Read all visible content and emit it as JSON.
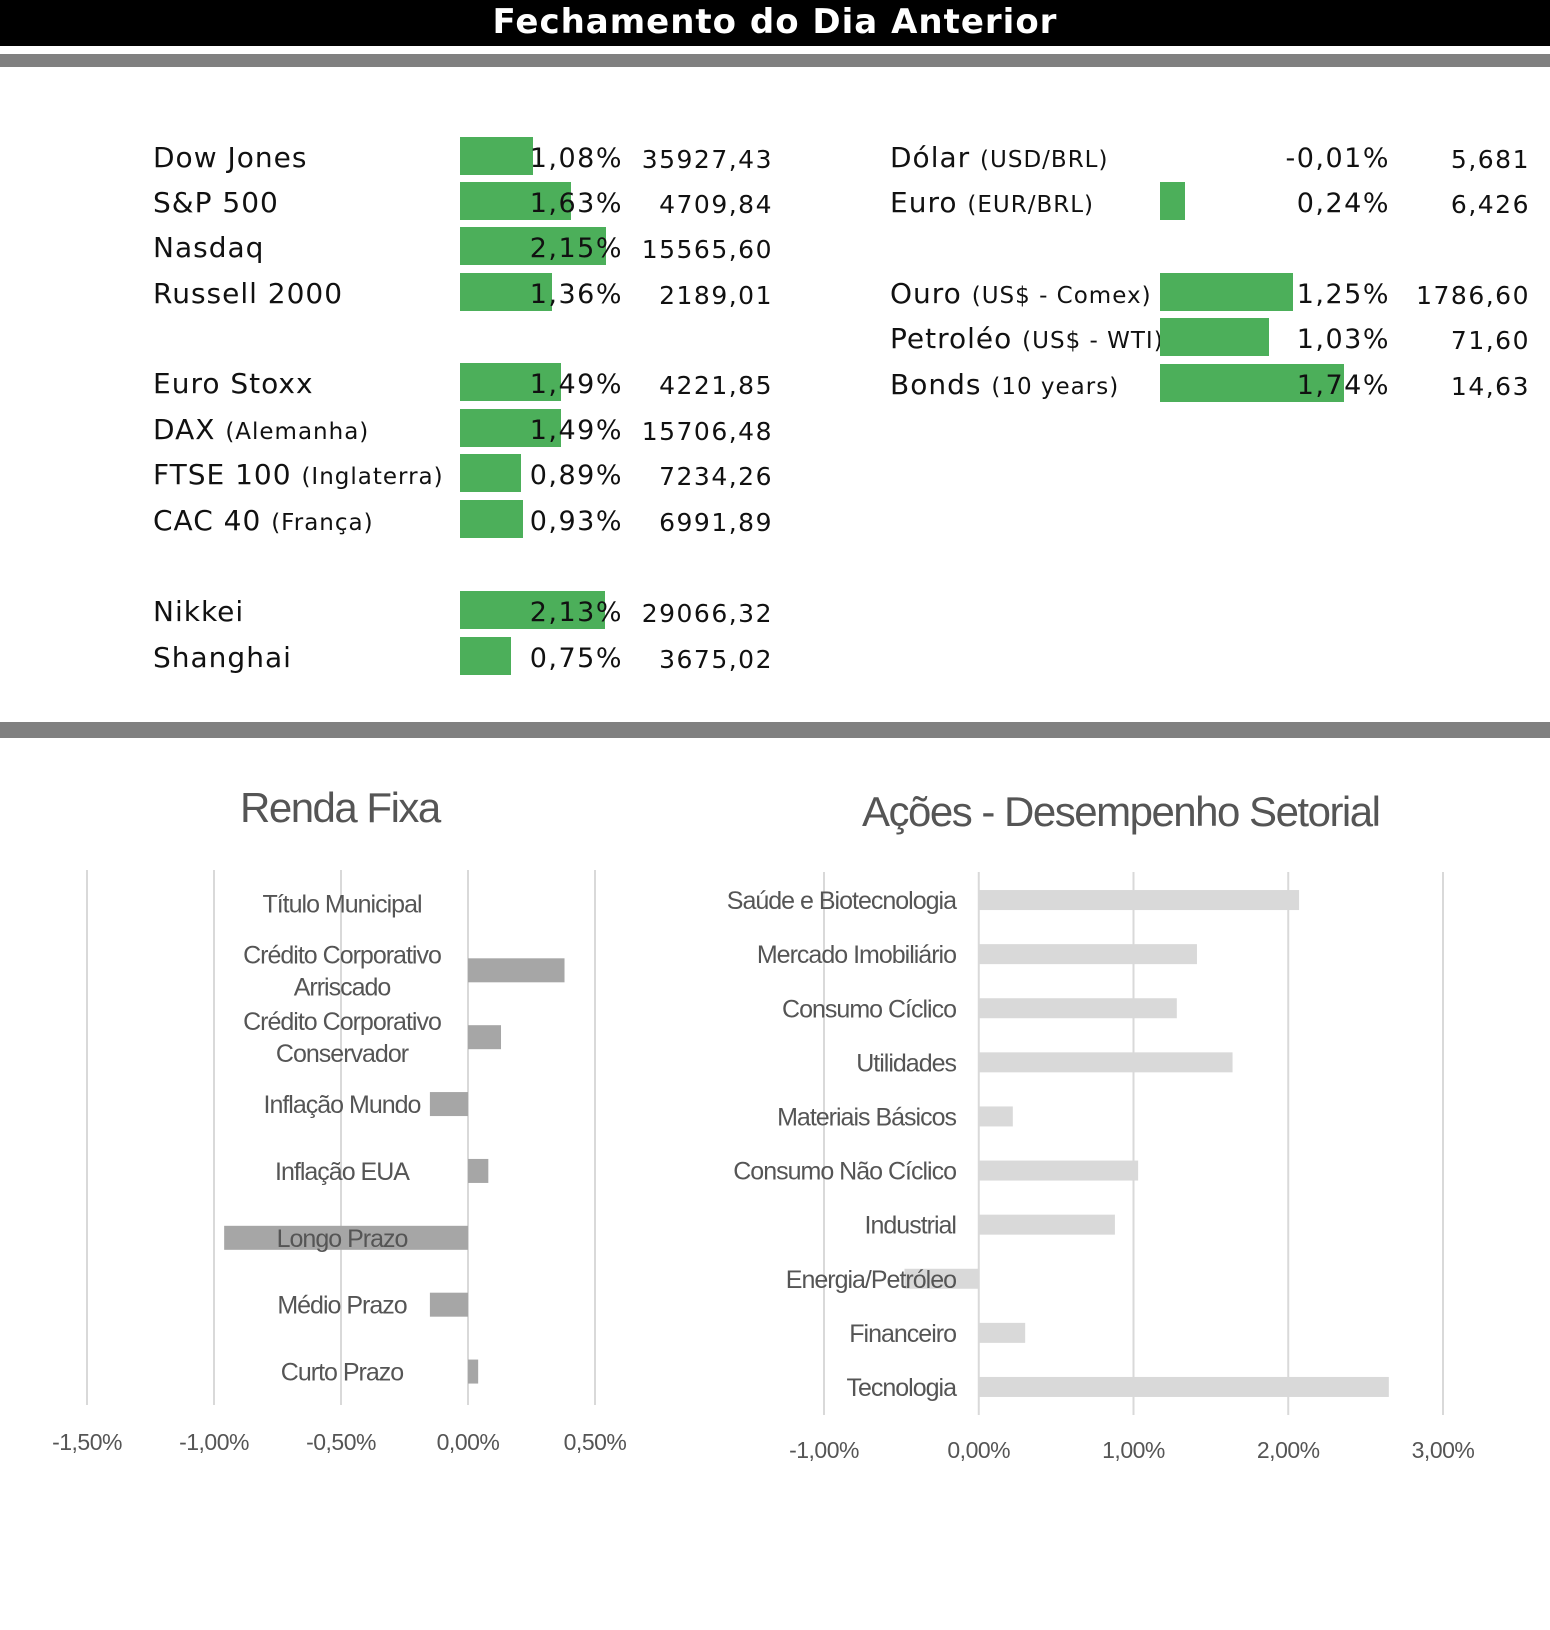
{
  "header": {
    "title": "Fechamento do Dia Anterior"
  },
  "markets_left": [
    {
      "name": "Dow Jones",
      "sub": "",
      "pct": "1,08%",
      "pct_value": 1.08,
      "value": "35927,43"
    },
    {
      "name": "S&P 500",
      "sub": "",
      "pct": "1,63%",
      "pct_value": 1.63,
      "value": "4709,84"
    },
    {
      "name": "Nasdaq",
      "sub": "",
      "pct": "2,15%",
      "pct_value": 2.15,
      "value": "15565,60"
    },
    {
      "name": "Russell 2000",
      "sub": "",
      "pct": "1,36%",
      "pct_value": 1.36,
      "value": "2189,01"
    },
    {
      "name": "Euro Stoxx",
      "sub": "",
      "pct": "1,49%",
      "pct_value": 1.49,
      "value": "4221,85"
    },
    {
      "name": "DAX",
      "sub": "(Alemanha)",
      "pct": "1,49%",
      "pct_value": 1.49,
      "value": "15706,48"
    },
    {
      "name": "FTSE 100",
      "sub": "(Inglaterra)",
      "pct": "0,89%",
      "pct_value": 0.89,
      "value": "7234,26"
    },
    {
      "name": "CAC 40",
      "sub": "(França)",
      "pct": "0,93%",
      "pct_value": 0.93,
      "value": "6991,89"
    },
    {
      "name": "Nikkei",
      "sub": "",
      "pct": "2,13%",
      "pct_value": 2.13,
      "value": "29066,32"
    },
    {
      "name": "Shanghai",
      "sub": "",
      "pct": "0,75%",
      "pct_value": 0.75,
      "value": "3675,02"
    }
  ],
  "markets_right": [
    {
      "name": "Dólar",
      "sub": "(USD/BRL)",
      "pct": "-0,01%",
      "pct_value": -0.01,
      "value": "5,681"
    },
    {
      "name": "Euro",
      "sub": "(EUR/BRL)",
      "pct": "0,24%",
      "pct_value": 0.24,
      "value": "6,426"
    },
    {
      "name": "Ouro",
      "sub": "(US$ - Comex)",
      "pct": "1,25%",
      "pct_value": 1.25,
      "value": "1786,60"
    },
    {
      "name": "Petroléo",
      "sub": "(US$ - WTI)",
      "pct": "1,03%",
      "pct_value": 1.03,
      "value": "71,60"
    },
    {
      "name": "Bonds",
      "sub": "(10 years)",
      "pct": "1,74%",
      "pct_value": 1.74,
      "value": "14,63"
    }
  ],
  "colors": {
    "positive_bar": "#4caf5a",
    "band": "#808080",
    "chart_bar_dark": "#a6a6a6",
    "chart_bar_light": "#d9d9d9",
    "grid": "#d9d9d9"
  },
  "chart_data": [
    {
      "type": "bar",
      "orientation": "horizontal",
      "title": "Renda Fixa",
      "categories": [
        "Título Municipal",
        "Crédito Corporativo Arriscado",
        "Crédito Corporativo Conservador",
        "Inflação Mundo",
        "Inflação EUA",
        "Longo Prazo",
        "Médio Prazo",
        "Curto Prazo"
      ],
      "values": [
        0.0,
        0.38,
        0.13,
        -0.15,
        0.08,
        -0.96,
        -0.15,
        0.04
      ],
      "xlim": [
        -1.5,
        0.5
      ],
      "xticks": [
        "-1,50%",
        "-1,00%",
        "-0,50%",
        "0,00%",
        "0,50%"
      ],
      "grid": true
    },
    {
      "type": "bar",
      "orientation": "horizontal",
      "title": "Ações - Desempenho Setorial",
      "categories": [
        "Saúde e Biotecnologia",
        "Mercado Imobiliário",
        "Consumo Cíclico",
        "Utilidades",
        "Materiais Básicos",
        "Consumo Não Cíclico",
        "Industrial",
        "Energia/Petróleo",
        "Financeiro",
        "Tecnologia"
      ],
      "values": [
        2.07,
        1.41,
        1.28,
        1.64,
        0.22,
        1.03,
        0.88,
        -0.48,
        0.3,
        2.65
      ],
      "xlim": [
        -1.0,
        3.0
      ],
      "xticks": [
        "-1,00%",
        "0,00%",
        "1,00%",
        "2,00%",
        "3,00%"
      ],
      "grid": true
    }
  ]
}
